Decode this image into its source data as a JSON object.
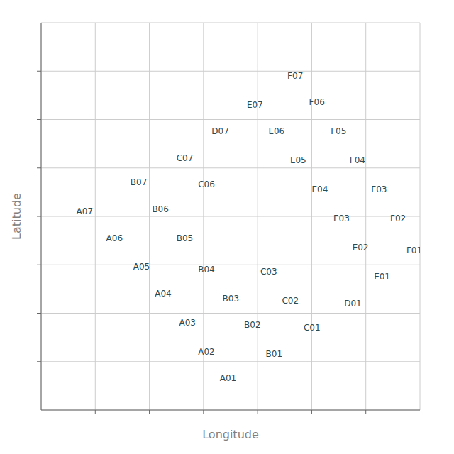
{
  "chart_data": {
    "type": "scatter",
    "xlabel": "Longitude",
    "ylabel": "Latitude",
    "x": [
      3.3,
      2.9,
      2.55,
      2.1,
      1.7,
      1.2,
      0.65,
      4.15,
      3.75,
      3.35,
      2.9,
      2.5,
      2.05,
      1.65,
      4.85,
      4.45,
      4.05,
      2.9,
      2.5,
      5.6,
      3.15,
      6.15,
      5.75,
      5.4,
      5.0,
      4.6,
      4.2,
      3.8,
      6.75,
      6.45,
      6.1,
      5.7,
      5.35,
      4.95,
      4.55
    ],
    "values": [
      0.55,
      1.1,
      1.7,
      2.3,
      2.85,
      3.45,
      4.0,
      1.05,
      1.65,
      2.2,
      2.8,
      3.45,
      4.05,
      4.6,
      1.6,
      2.15,
      2.75,
      4.55,
      5.1,
      2.1,
      5.65,
      2.65,
      3.25,
      3.85,
      4.45,
      5.05,
      5.65,
      6.2,
      3.2,
      3.85,
      4.45,
      5.05,
      5.65,
      6.25,
      6.8
    ],
    "labels": [
      "A01",
      "A02",
      "A03",
      "A04",
      "A05",
      "A06",
      "A07",
      "B01",
      "B02",
      "B03",
      "B04",
      "B05",
      "B06",
      "B07",
      "C01",
      "C02",
      "C03",
      "C06",
      "C07",
      "D01",
      "D07",
      "E01",
      "E02",
      "E03",
      "E04",
      "E05",
      "E06",
      "E07",
      "F01",
      "F02",
      "F03",
      "F04",
      "F05",
      "F06",
      "F07"
    ],
    "color": "#2c4a52",
    "marker": "none",
    "xlim": [
      0,
      7
    ],
    "ylim": [
      0,
      8
    ],
    "xticks": [
      1,
      2,
      3,
      4,
      5,
      6
    ],
    "yticks": [
      1,
      2,
      3,
      4,
      5,
      6,
      7
    ],
    "grid": true,
    "tick_labels": false
  }
}
